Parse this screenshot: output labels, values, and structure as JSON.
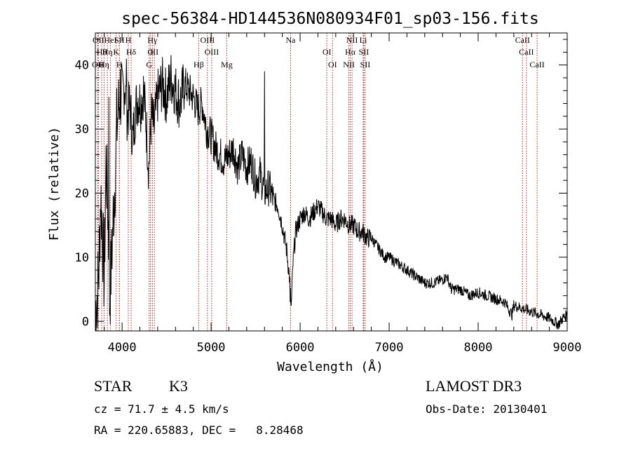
{
  "chart_data": {
    "type": "line",
    "title": "spec-56384-HD144536N080934F01_sp03-156.fits",
    "xlabel": "Wavelength (Å)",
    "ylabel": "Flux (relative)",
    "xlim": [
      3700,
      9000
    ],
    "ylim": [
      -1.5,
      45
    ],
    "xticks": [
      4000,
      5000,
      6000,
      7000,
      8000,
      9000
    ],
    "yticks": [
      0,
      10,
      20,
      30,
      40
    ],
    "grid": false,
    "line_color": "#000000",
    "marker_color": "#b22222",
    "series": [
      {
        "x": [
          3700,
          3720,
          3740,
          3760,
          3780,
          3800,
          3820,
          3840,
          3860,
          3880,
          3900,
          3920,
          3940,
          3960,
          3980,
          4000,
          4030,
          4060,
          4090,
          4120,
          4150,
          4180,
          4210,
          4240,
          4270,
          4300,
          4330,
          4360,
          4400,
          4450,
          4500,
          4550,
          4600,
          4650,
          4700,
          4750,
          4800,
          4850,
          4900,
          4950,
          5000,
          5050,
          5100,
          5150,
          5200,
          5250,
          5300,
          5350,
          5400,
          5450,
          5500,
          5550,
          5600,
          5650,
          5700,
          5750,
          5800,
          5850,
          5880,
          5900,
          5920,
          5950,
          6000,
          6050,
          6100,
          6150,
          6200,
          6250,
          6300,
          6350,
          6400,
          6450,
          6500,
          6550,
          6600,
          6650,
          6700,
          6750,
          6800,
          6850,
          6900,
          6950,
          7000,
          7100,
          7200,
          7300,
          7400,
          7500,
          7600,
          7650,
          7700,
          7800,
          7900,
          8000,
          8100,
          8200,
          8300,
          8380,
          8400,
          8500,
          8600,
          8700,
          8800,
          8850,
          8900,
          8950,
          9000
        ],
        "y": [
          2,
          4,
          8,
          20,
          14,
          6,
          25,
          18,
          3,
          9,
          16,
          22,
          30,
          33,
          36,
          35,
          37,
          32,
          34,
          28,
          33,
          35,
          34,
          36,
          31,
          24,
          32,
          30,
          35,
          37,
          35,
          38,
          36,
          34,
          37,
          36,
          35,
          33,
          34,
          30,
          29,
          27,
          26,
          25,
          26,
          27,
          24,
          26,
          24,
          25,
          22,
          23,
          20,
          21,
          19,
          18,
          15,
          11,
          7,
          2,
          9,
          14,
          16,
          17,
          16,
          17,
          18,
          17,
          16,
          16,
          15,
          16,
          16,
          15,
          15,
          14,
          14,
          13,
          13,
          12,
          11,
          10,
          10,
          9,
          8,
          7,
          6,
          6,
          6.5,
          7,
          5,
          5,
          4,
          4.5,
          4,
          3.5,
          3,
          1,
          2.5,
          2,
          1.5,
          1,
          0.5,
          0,
          -0.5,
          0.5,
          1
        ]
      }
    ],
    "spikes": [
      {
        "x": 3852,
        "y": 35
      },
      {
        "x": 4050,
        "y": 41
      },
      {
        "x": 5600,
        "y": 39
      },
      {
        "x": 5890,
        "y": 3
      }
    ],
    "line_markers": [
      {
        "x": 3727,
        "row": 3,
        "label": "OII"
      },
      {
        "x": 3734,
        "row": 1,
        "label": "OII"
      },
      {
        "x": 3771,
        "row": 2,
        "label": "Hθ"
      },
      {
        "x": 3798,
        "row": 3,
        "label": "Hη"
      },
      {
        "x": 3835,
        "row": 2,
        "label": "Hη"
      },
      {
        "x": 3869,
        "row": 1,
        "label": "HeI"
      },
      {
        "x": 3934,
        "row": 2,
        "label": "K"
      },
      {
        "x": 3969,
        "row": 3,
        "label": "H"
      },
      {
        "x": 3970,
        "row": 1,
        "label": "SII"
      },
      {
        "x": 4102,
        "row": 2,
        "label": "Hδ"
      },
      {
        "x": 4070,
        "row": 1,
        "label": "H"
      },
      {
        "x": 4304,
        "row": 3,
        "label": "G"
      },
      {
        "x": 4320,
        "row": 2,
        "label": "O"
      },
      {
        "x": 4341,
        "row": 1,
        "label": "Hγ"
      },
      {
        "x": 4363,
        "row": 2,
        "label": "III"
      },
      {
        "x": 4861,
        "row": 3,
        "label": "Hβ"
      },
      {
        "x": 4959,
        "row": 1,
        "label": "OIII"
      },
      {
        "x": 5007,
        "row": 2,
        "label": "OIII"
      },
      {
        "x": 5176,
        "row": 3,
        "label": "Mg"
      },
      {
        "x": 5893,
        "row": 1,
        "label": "Na"
      },
      {
        "x": 6300,
        "row": 2,
        "label": "OI"
      },
      {
        "x": 6364,
        "row": 3,
        "label": "OI"
      },
      {
        "x": 6548,
        "row": 3,
        "label": "NII"
      },
      {
        "x": 6563,
        "row": 2,
        "label": "Hα"
      },
      {
        "x": 6583,
        "row": 1,
        "label": "NII"
      },
      {
        "x": 6708,
        "row": 1,
        "label": "Li"
      },
      {
        "x": 6716,
        "row": 2,
        "label": "SII"
      },
      {
        "x": 6731,
        "row": 3,
        "label": "SII"
      },
      {
        "x": 8498,
        "row": 1,
        "label": "CaII"
      },
      {
        "x": 8542,
        "row": 2,
        "label": "CaII"
      },
      {
        "x": 8662,
        "row": 3,
        "label": "CaII"
      }
    ]
  },
  "info": {
    "class_label": "STAR",
    "subclass": "K3",
    "survey": "LAMOST DR3",
    "redshift": "cz = 71.7 ± 4.5 km/s",
    "obs_date": "Obs-Date: 20130401",
    "coords": "RA = 220.65883, DEC =   8.28468"
  }
}
